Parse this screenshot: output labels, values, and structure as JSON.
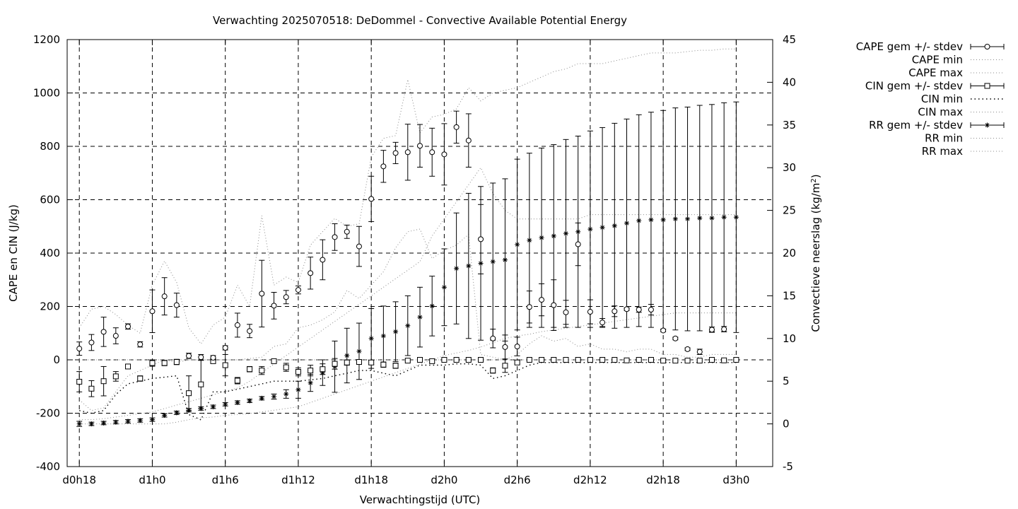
{
  "chart_data": {
    "type": "line",
    "title": "Verwachting 2025070518: DeDommel - Convective Available Potential Energy",
    "xlabel": "Verwachtingstijd (UTC)",
    "ylabel": "CAPE en CIN (J/kg)",
    "y2label_main": "Convectieve neerslag (kg/m",
    "y2label_sup": "2",
    "y2label_end": ")",
    "ylim": [
      -400,
      1200
    ],
    "y2lim": [
      -5,
      45
    ],
    "xlim": [
      -1,
      57
    ],
    "x_ticks": [
      {
        "x": 0,
        "label": "d0h18"
      },
      {
        "x": 6,
        "label": "d1h0"
      },
      {
        "x": 12,
        "label": "d1h6"
      },
      {
        "x": 18,
        "label": "d1h12"
      },
      {
        "x": 24,
        "label": "d1h18"
      },
      {
        "x": 30,
        "label": "d2h0"
      },
      {
        "x": 36,
        "label": "d2h6"
      },
      {
        "x": 42,
        "label": "d2h12"
      },
      {
        "x": 48,
        "label": "d2h18"
      },
      {
        "x": 54,
        "label": "d3h0"
      }
    ],
    "y_ticks": [
      -400,
      -200,
      0,
      200,
      400,
      600,
      800,
      1000,
      1200
    ],
    "y2_ticks": [
      -5,
      0,
      5,
      10,
      15,
      20,
      25,
      30,
      35,
      40,
      45
    ],
    "grid": true,
    "legend_position": "outside-right",
    "legend": [
      {
        "label": "CAPE gem +/- stdev",
        "style": "errorbar",
        "marker": "circle"
      },
      {
        "label": "CAPE min",
        "style": "dotted"
      },
      {
        "label": "CAPE max",
        "style": "dotted"
      },
      {
        "label": "CIN gem +/- stdev",
        "style": "errorbar",
        "marker": "square"
      },
      {
        "label": "CIN min",
        "style": "dotted-bold"
      },
      {
        "label": "CIN max",
        "style": "dotted"
      },
      {
        "label": "RR gem +/- stdev",
        "style": "errorbar",
        "marker": "star"
      },
      {
        "label": "RR min",
        "style": "dotted"
      },
      {
        "label": "RR max",
        "style": "dotted"
      }
    ],
    "x": [
      0,
      1,
      2,
      3,
      4,
      5,
      6,
      7,
      8,
      9,
      10,
      11,
      12,
      13,
      14,
      15,
      16,
      17,
      18,
      19,
      20,
      21,
      22,
      23,
      24,
      25,
      26,
      27,
      28,
      29,
      30,
      31,
      32,
      33,
      34,
      35,
      36,
      37,
      38,
      39,
      40,
      41,
      42,
      43,
      44,
      45,
      46,
      47,
      48,
      49,
      50,
      51,
      52,
      53,
      54
    ],
    "series": [
      {
        "name": "CAPE gem +/- stdev",
        "axis": "left",
        "mean": [
          42,
          65,
          105,
          90,
          125,
          58,
          182,
          238,
          205,
          15,
          10,
          8,
          45,
          130,
          108,
          248,
          203,
          235,
          262,
          325,
          375,
          460,
          480,
          425,
          603,
          725,
          775,
          778,
          802,
          778,
          770,
          872,
          822,
          452,
          80,
          48,
          50,
          198,
          225,
          205,
          178,
          433,
          180,
          140,
          182,
          190,
          188,
          188,
          110,
          80,
          40,
          30,
          113,
          115,
          null
        ],
        "sd": [
          25,
          30,
          55,
          30,
          10,
          10,
          80,
          70,
          45,
          10,
          10,
          8,
          8,
          45,
          25,
          125,
          50,
          25,
          15,
          60,
          75,
          50,
          25,
          75,
          85,
          60,
          40,
          105,
          80,
          90,
          115,
          60,
          100,
          130,
          35,
          45,
          35,
          60,
          60,
          95,
          45,
          80,
          45,
          15,
          20,
          5,
          10,
          20,
          5,
          5,
          5,
          10,
          10,
          10,
          null
        ]
      },
      {
        "name": "CAPE min",
        "axis": "left",
        "values": [
          -150,
          -190,
          -180,
          -120,
          -60,
          -40,
          -20,
          0,
          -10,
          0,
          0,
          0,
          0,
          0,
          5,
          10,
          50,
          60,
          120,
          130,
          150,
          180,
          260,
          230,
          280,
          330,
          420,
          480,
          490,
          380,
          410,
          430,
          470,
          20,
          10,
          0,
          20,
          60,
          90,
          70,
          80,
          50,
          60,
          40,
          40,
          30,
          40,
          40,
          20,
          20,
          10,
          10,
          20,
          20,
          20
        ]
      },
      {
        "name": "CAPE max",
        "axis": "left",
        "values": [
          120,
          190,
          200,
          170,
          130,
          100,
          280,
          370,
          290,
          120,
          60,
          130,
          160,
          280,
          200,
          540,
          280,
          310,
          290,
          430,
          480,
          530,
          500,
          510,
          760,
          830,
          840,
          1050,
          850,
          910,
          920,
          940,
          1020,
          970,
          1000,
          1010,
          1020,
          1040,
          1060,
          1080,
          1090,
          1110,
          1110,
          1110,
          1120,
          1130,
          1140,
          1150,
          1150,
          1150,
          1155,
          1160,
          1160,
          1165,
          1165
        ]
      },
      {
        "name": "CIN gem +/- stdev",
        "axis": "left",
        "mean": [
          -82,
          -108,
          -80,
          -62,
          -25,
          -70,
          -12,
          -12,
          -8,
          -125,
          -92,
          -5,
          -20,
          -78,
          -35,
          -40,
          -5,
          -28,
          -45,
          -40,
          -35,
          -15,
          -10,
          -8,
          -10,
          -18,
          -22,
          -3,
          0,
          -5,
          0,
          0,
          0,
          0,
          -40,
          -22,
          -10,
          0,
          0,
          0,
          0,
          0,
          0,
          0,
          0,
          -2,
          0,
          0,
          -3,
          -3,
          -3,
          -3,
          0,
          -2,
          0
        ],
        "sd": [
          38,
          30,
          55,
          18,
          8,
          10,
          12,
          10,
          10,
          65,
          90,
          8,
          40,
          12,
          10,
          15,
          5,
          15,
          15,
          20,
          20,
          20,
          10,
          5,
          8,
          10,
          10,
          3,
          3,
          5,
          3,
          3,
          3,
          3,
          10,
          25,
          5,
          3,
          3,
          3,
          3,
          3,
          3,
          3,
          3,
          3,
          3,
          3,
          3,
          3,
          3,
          3,
          3,
          3,
          3
        ]
      },
      {
        "name": "CIN min",
        "axis": "left",
        "values": [
          -190,
          -200,
          -190,
          -130,
          -90,
          -80,
          -70,
          -65,
          -60,
          -205,
          -225,
          -120,
          -120,
          -110,
          -100,
          -90,
          -80,
          -80,
          -80,
          -75,
          -70,
          -60,
          -50,
          -40,
          -40,
          -50,
          -60,
          -40,
          -20,
          -20,
          -20,
          -15,
          -15,
          -20,
          -70,
          -60,
          -40,
          -20,
          -10,
          -10,
          -10,
          -10,
          -10,
          -10,
          -10,
          -10,
          -10,
          -10,
          -10,
          -10,
          -10,
          -10,
          -10,
          -10,
          -10
        ]
      },
      {
        "name": "CIN max",
        "axis": "left",
        "values": [
          0,
          0,
          0,
          0,
          0,
          0,
          0,
          0,
          0,
          0,
          0,
          0,
          0,
          0,
          0,
          0,
          0,
          0,
          0,
          0,
          0,
          0,
          0,
          0,
          0,
          0,
          0,
          0,
          0,
          0,
          0,
          0,
          0,
          0,
          0,
          0,
          0,
          0,
          0,
          0,
          0,
          0,
          0,
          0,
          0,
          0,
          0,
          0,
          0,
          0,
          0,
          0,
          0,
          0,
          0
        ]
      },
      {
        "name": "RR gem +/- stdev",
        "axis": "right",
        "mean": [
          0,
          0,
          0.1,
          0.2,
          0.3,
          0.4,
          0.5,
          1,
          1.3,
          1.6,
          1.8,
          2,
          2.3,
          2.5,
          2.7,
          3,
          3.2,
          3.5,
          4,
          4.8,
          6,
          6.7,
          8,
          8.5,
          10,
          10.3,
          10.8,
          11.5,
          12.5,
          13.8,
          16,
          18.2,
          18.5,
          18.8,
          19,
          19.2,
          21,
          21.5,
          21.8,
          22,
          22.3,
          22.5,
          22.8,
          23,
          23.2,
          23.5,
          23.8,
          23.9,
          23.9,
          24,
          24,
          24.1,
          24.1,
          24.2,
          24.2
        ],
        "sd": [
          0.3,
          0.2,
          0.2,
          0.2,
          0.2,
          0.2,
          0.2,
          0.2,
          0.2,
          0.2,
          0.2,
          0.2,
          0.2,
          0.2,
          0.2,
          0.2,
          0.3,
          0.5,
          1,
          1,
          1.5,
          3,
          3.2,
          3.3,
          3.5,
          3.5,
          3.5,
          3.5,
          3.5,
          3.5,
          4.5,
          6.5,
          8.5,
          9,
          9.2,
          9.5,
          10,
          10.2,
          10.5,
          10.7,
          11,
          11.2,
          11.5,
          11.7,
          12,
          12.2,
          12.4,
          12.6,
          12.8,
          13,
          13.1,
          13.2,
          13.3,
          13.4,
          13.5
        ]
      },
      {
        "name": "RR min",
        "axis": "right",
        "values": [
          0,
          0,
          0,
          0,
          0,
          0,
          0,
          0,
          0.2,
          0.5,
          0.7,
          0.8,
          1,
          1.1,
          1.2,
          1.4,
          1.6,
          1.8,
          2,
          2.5,
          3,
          3.5,
          4,
          4.5,
          5,
          5.5,
          6,
          6.5,
          7,
          7.5,
          8,
          8.3,
          8.6,
          9,
          9.5,
          10,
          10.3,
          10.5,
          10.8,
          11,
          11.2,
          11.4,
          11.6,
          11.8,
          12,
          12.2,
          12.4,
          12.6,
          12.8,
          13,
          13,
          13,
          13,
          13,
          13
        ]
      },
      {
        "name": "RR max",
        "axis": "right",
        "values": [
          0.5,
          0.5,
          0.6,
          0.8,
          1,
          1.2,
          1.4,
          1.8,
          2.2,
          2.6,
          3,
          3.4,
          3.8,
          4.2,
          5,
          6,
          7,
          8,
          9,
          10,
          11,
          12,
          13,
          14,
          15,
          16,
          17,
          18,
          19,
          22,
          24,
          26,
          28,
          30,
          27,
          25,
          24,
          24,
          24,
          24,
          24,
          24,
          24.5,
          24.5,
          24.5,
          24.5,
          24.5,
          24.5,
          24.5,
          24.5,
          24.5,
          24.5,
          24.5,
          24.5,
          24.5
        ]
      }
    ]
  }
}
